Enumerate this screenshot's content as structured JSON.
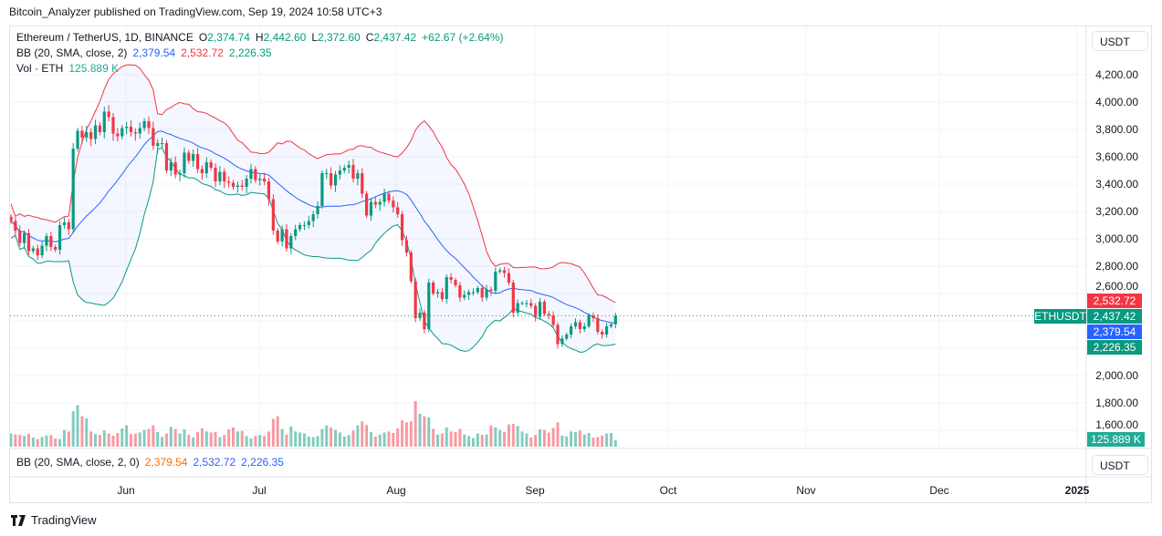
{
  "header": {
    "published": "Bitcoin_Analyzer published on TradingView.com, Sep 19, 2024 10:58 UTC+3"
  },
  "legend": {
    "symbol": "Ethereum / TetherUS, 1D, BINANCE",
    "o_label": "O",
    "o": "2,374.74",
    "h_label": "H",
    "h": "2,442.60",
    "l_label": "L",
    "l": "2,372.60",
    "c_label": "C",
    "c": "2,437.42",
    "change": "+62.67 (+2.64%)",
    "bb_label": "BB (20, SMA, close, 2)",
    "bb_basis": "2,379.54",
    "bb_upper": "2,532.72",
    "bb_lower": "2,226.35",
    "vol_label": "Vol · ETH",
    "vol": "125.889 K"
  },
  "lower_pane": {
    "bb_label": "BB (20, SMA, close, 2, 0)",
    "basis": "2,379.54",
    "upper": "2,532.72",
    "lower": "2,226.35"
  },
  "currency_button": "USDT",
  "badges": {
    "upper": "2,532.72",
    "last": "2,437.42",
    "basis": "2,379.54",
    "lower": "2,226.35",
    "symbol": "ETHUSDT",
    "volume": "125.889 K"
  },
  "colors": {
    "up": "#089981",
    "down": "#f23645",
    "basis": "#2962ff",
    "upper": "#f23645",
    "lower": "#089981",
    "fill": "#2962ff"
  },
  "footer": {
    "brand": "TradingView"
  },
  "chart_data": {
    "type": "candlestick",
    "symbol": "ETHUSDT",
    "interval": "1D",
    "y_ticks": [
      "4,200.00",
      "4,000.00",
      "3,800.00",
      "3,600.00",
      "3,400.00",
      "3,200.00",
      "3,000.00",
      "2,800.00",
      "2,600.00",
      "2,000.00",
      "1,800.00",
      "1,600.00"
    ],
    "y_tick_values": [
      4200,
      4000,
      3800,
      3600,
      3400,
      3200,
      3000,
      2800,
      2600,
      2000,
      1800,
      1600
    ],
    "ylim": [
      1600,
      4200
    ],
    "x_ticks": [
      "Jun",
      "Jul",
      "Aug",
      "Sep",
      "Oct",
      "Nov",
      "Dec",
      "2025"
    ],
    "grid": true,
    "close": [
      3130,
      3060,
      2970,
      3040,
      2910,
      2930,
      2880,
      2950,
      3020,
      2940,
      2920,
      3100,
      3120,
      3070,
      3660,
      3790,
      3740,
      3780,
      3730,
      3830,
      3780,
      3930,
      3890,
      3770,
      3750,
      3810,
      3820,
      3780,
      3770,
      3810,
      3860,
      3810,
      3680,
      3700,
      3700,
      3500,
      3560,
      3470,
      3480,
      3630,
      3570,
      3620,
      3510,
      3480,
      3560,
      3520,
      3420,
      3490,
      3420,
      3410,
      3380,
      3390,
      3380,
      3440,
      3510,
      3430,
      3440,
      3420,
      3290,
      3060,
      2980,
      3070,
      2930,
      3020,
      3070,
      3100,
      3100,
      3130,
      3180,
      3240,
      3480,
      3480,
      3390,
      3470,
      3500,
      3520,
      3540,
      3440,
      3480,
      3330,
      3170,
      3270,
      3250,
      3270,
      3330,
      3280,
      3230,
      3180,
      2990,
      2900,
      2690,
      2420,
      2460,
      2340,
      2680,
      2600,
      2610,
      2560,
      2720,
      2700,
      2660,
      2570,
      2590,
      2610,
      2610,
      2640,
      2570,
      2630,
      2620,
      2760,
      2770,
      2750,
      2680,
      2460,
      2530,
      2530,
      2530,
      2510,
      2430,
      2540,
      2450,
      2440,
      2370,
      2230,
      2270,
      2300,
      2360,
      2390,
      2340,
      2360,
      2440,
      2420,
      2320,
      2300,
      2360,
      2374.74,
      2437.42
    ],
    "volume_k": [
      260,
      240,
      230,
      210,
      250,
      180,
      150,
      190,
      220,
      230,
      160,
      150,
      330,
      300,
      700,
      820,
      600,
      560,
      300,
      250,
      230,
      320,
      260,
      220,
      270,
      360,
      420,
      250,
      260,
      280,
      330,
      350,
      420,
      290,
      190,
      260,
      390,
      350,
      260,
      340,
      240,
      180,
      290,
      360,
      300,
      280,
      290,
      190,
      230,
      340,
      380,
      300,
      310,
      210,
      160,
      210,
      230,
      210,
      300,
      550,
      600,
      350,
      240,
      400,
      300,
      280,
      260,
      200,
      190,
      210,
      350,
      420,
      380,
      330,
      280,
      200,
      230,
      320,
      420,
      500,
      430,
      290,
      200,
      240,
      280,
      300,
      270,
      360,
      520,
      480,
      500,
      900,
      650,
      600,
      580,
      350,
      240,
      260,
      380,
      300,
      290,
      350,
      240,
      210,
      170,
      260,
      230,
      240,
      420,
      380,
      330,
      290,
      440,
      450,
      410,
      300,
      260,
      180,
      230,
      340,
      330,
      280,
      370,
      480,
      220,
      200,
      300,
      290,
      320,
      240,
      270,
      180,
      190,
      220,
      260,
      270,
      125.889
    ],
    "last_price": 2437.42,
    "bb": {
      "basis": 2379.54,
      "upper": 2532.72,
      "lower": 2226.35
    }
  }
}
